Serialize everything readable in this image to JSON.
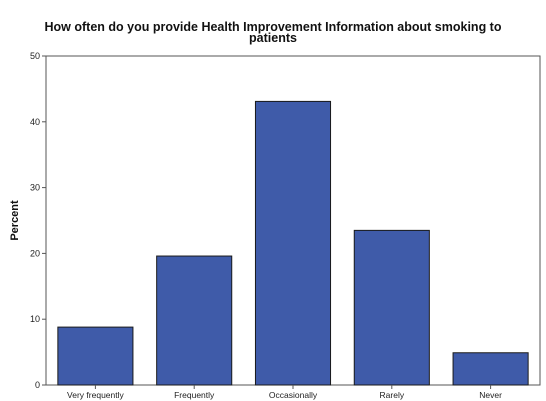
{
  "chart_data": {
    "type": "bar",
    "title_lines": [
      "How often do you provide Health Improvement Information about smoking to",
      "patients"
    ],
    "xlabel": "",
    "ylabel": "Percent",
    "categories": [
      "Very frequently",
      "Frequently",
      "Occasionally",
      "Rarely",
      "Never"
    ],
    "values": [
      8.8,
      19.6,
      43.1,
      23.5,
      4.9
    ],
    "ylim": [
      0,
      50
    ],
    "yticks": [
      0,
      10,
      20,
      30,
      40,
      50
    ],
    "grid": false,
    "legend": "none",
    "bar_color": "#3f5ba9",
    "bar_edge_color": "#1a1a1a"
  }
}
